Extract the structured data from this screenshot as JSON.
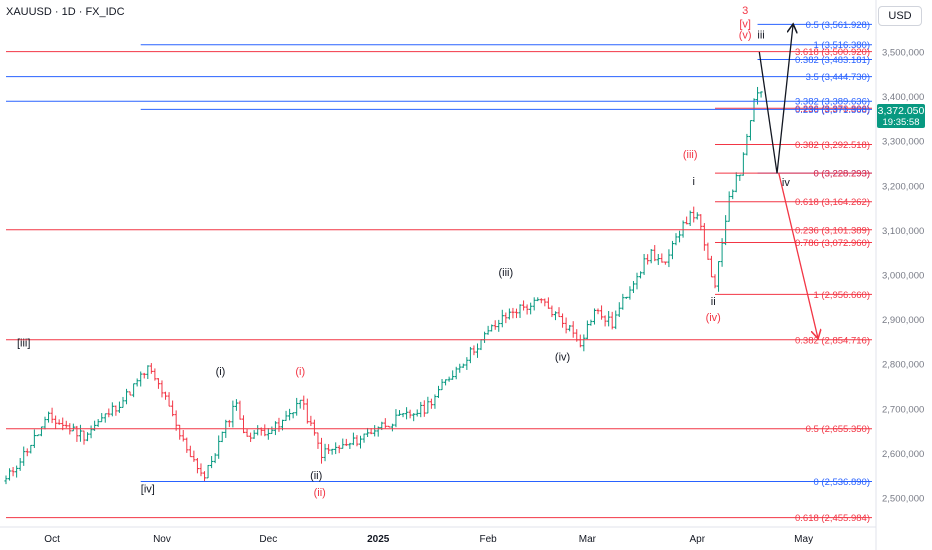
{
  "header": {
    "symbol_title": "XAUUSD · 1D · FX_IDC",
    "currency": "USD"
  },
  "last_price": {
    "value": "3,372.050",
    "countdown": "19:35:58"
  },
  "chart_data": {
    "type": "candlestick",
    "ylim": [
      2440,
      3610
    ],
    "y_ticks": [
      "3,500,000",
      "3,400,000",
      "3,300,000",
      "3,200,000",
      "3,100,000",
      "3,000,000",
      "2,900,000",
      "2,800,000",
      "2,700,000",
      "2,600,000",
      "2,500,000"
    ],
    "y_tick_values": [
      3500,
      3400,
      3300,
      3200,
      3100,
      3000,
      2900,
      2800,
      2700,
      2600,
      2500
    ],
    "x_labels": [
      {
        "label": "Oct",
        "day": 13
      },
      {
        "label": "Nov",
        "day": 44
      },
      {
        "label": "Dec",
        "day": 74
      },
      {
        "label": "2025",
        "day": 105,
        "bold": true
      },
      {
        "label": "Feb",
        "day": 136
      },
      {
        "label": "Mar",
        "day": 164
      },
      {
        "label": "Apr",
        "day": 195
      },
      {
        "label": "May",
        "day": 225
      }
    ],
    "fib_levels": [
      {
        "label": "0.5 (3,561.928)",
        "value": 3561.928,
        "color": "#2962ff",
        "from_day": 212
      },
      {
        "label": "1 (3,516.380)",
        "value": 3516.38,
        "color": "#2962ff",
        "from_day": 38
      },
      {
        "label": "3.618 (3,500.920)",
        "value": 3500.92,
        "color": "#f23645",
        "from_day": 0
      },
      {
        "label": "0.382 (3,483.181)",
        "value": 3483.181,
        "color": "#2962ff",
        "from_day": 212
      },
      {
        "label": "3.5 (3,444.730)",
        "value": 3444.73,
        "color": "#2962ff",
        "from_day": 0
      },
      {
        "label": "3.382 (3,389.636)",
        "value": 3389.636,
        "color": "#2962ff",
        "from_day": 0
      },
      {
        "label": "0.236 (3,373.806)",
        "value": 3373.806,
        "color": "#f23645",
        "from_day": 200
      },
      {
        "label": "0.236 (3,371.368)",
        "value": 3371.368,
        "color": "#2962ff",
        "from_day": 38
      },
      {
        "label": "0.382 (3,292.518)",
        "value": 3292.518,
        "color": "#f23645",
        "from_day": 200
      },
      {
        "label": "0 (3,228.293)",
        "value": 3228.293,
        "color": "#2962ff",
        "from_day": 212
      },
      {
        "label": "0 (3,228.293)",
        "value": 3228.293,
        "color": "#f23645",
        "from_day": 200
      },
      {
        "label": "0.618 (3,164.262)",
        "value": 3164.262,
        "color": "#f23645",
        "from_day": 200
      },
      {
        "label": "0.236 (3,101.389)",
        "value": 3101.389,
        "color": "#f23645",
        "from_day": 0
      },
      {
        "label": "0.786 (3,072.960)",
        "value": 3072.96,
        "color": "#f23645",
        "from_day": 200
      },
      {
        "label": "1 (2,956.660)",
        "value": 2956.66,
        "color": "#f23645",
        "from_day": 200
      },
      {
        "label": "0.382 (2,854.716)",
        "value": 2854.716,
        "color": "#f23645",
        "from_day": 0
      },
      {
        "label": "0.5 (2,655.350)",
        "value": 2655.35,
        "color": "#f23645",
        "from_day": 0
      },
      {
        "label": "0 (2,536.890)",
        "value": 2536.89,
        "color": "#2962ff",
        "from_day": 38
      },
      {
        "label": "0.618 (2,455.984)",
        "value": 2455.984,
        "color": "#f23645",
        "from_day": 0
      }
    ],
    "wave_labels": [
      {
        "text": "3",
        "day": 208.5,
        "price": 3585,
        "color": "#f23645"
      },
      {
        "text": "[v]",
        "day": 208.5,
        "price": 3555,
        "color": "#f23645"
      },
      {
        "text": "(v)",
        "day": 208.5,
        "price": 3530,
        "color": "#f23645"
      },
      {
        "text": "iii",
        "day": 213,
        "price": 3530,
        "color": "#131722"
      },
      {
        "text": "(iii)",
        "day": 193,
        "price": 3262,
        "color": "#f23645"
      },
      {
        "text": "i",
        "day": 194,
        "price": 3202,
        "color": "#131722"
      },
      {
        "text": "iv",
        "day": 220,
        "price": 3200,
        "color": "#131722"
      },
      {
        "text": "(iii)",
        "day": 141,
        "price": 2998,
        "color": "#131722"
      },
      {
        "text": "ii",
        "day": 199.5,
        "price": 2933,
        "color": "#131722"
      },
      {
        "text": "(iv)",
        "day": 199.5,
        "price": 2897,
        "color": "#f23645"
      },
      {
        "text": "[iii]",
        "day": 5,
        "price": 2840,
        "color": "#131722"
      },
      {
        "text": "(iv)",
        "day": 157,
        "price": 2808,
        "color": "#131722"
      },
      {
        "text": "(i)",
        "day": 60.5,
        "price": 2776,
        "color": "#131722"
      },
      {
        "text": "(i)",
        "day": 83,
        "price": 2776,
        "color": "#f23645"
      },
      {
        "text": "(ii)",
        "day": 87.5,
        "price": 2543,
        "color": "#131722"
      },
      {
        "text": "(ii)",
        "day": 88.5,
        "price": 2505,
        "color": "#f23645"
      },
      {
        "text": "[iv]",
        "day": 40,
        "price": 2512,
        "color": "#131722"
      }
    ],
    "projection_paths": [
      {
        "color": "#131722",
        "points": [
          [
            212.5,
            3500
          ],
          [
            217.5,
            3228
          ],
          [
            222,
            3560
          ]
        ]
      },
      {
        "color": "#f23645",
        "points": [
          [
            218,
            3228
          ],
          [
            229,
            2860
          ]
        ]
      }
    ],
    "anchors": [
      {
        "day": 0,
        "price": 2540
      },
      {
        "day": 12,
        "price": 2680
      },
      {
        "day": 22,
        "price": 2640
      },
      {
        "day": 33,
        "price": 2720
      },
      {
        "day": 40,
        "price": 2790
      },
      {
        "day": 44,
        "price": 2740
      },
      {
        "day": 49,
        "price": 2640
      },
      {
        "day": 56,
        "price": 2545
      },
      {
        "day": 65,
        "price": 2720
      },
      {
        "day": 67,
        "price": 2640
      },
      {
        "day": 77,
        "price": 2660
      },
      {
        "day": 83,
        "price": 2720
      },
      {
        "day": 89,
        "price": 2600
      },
      {
        "day": 97,
        "price": 2620
      },
      {
        "day": 105,
        "price": 2660
      },
      {
        "day": 118,
        "price": 2700
      },
      {
        "day": 126,
        "price": 2780
      },
      {
        "day": 137,
        "price": 2880
      },
      {
        "day": 143,
        "price": 2920
      },
      {
        "day": 151,
        "price": 2940
      },
      {
        "day": 159,
        "price": 2880
      },
      {
        "day": 162,
        "price": 2850
      },
      {
        "day": 166,
        "price": 2920
      },
      {
        "day": 171,
        "price": 2890
      },
      {
        "day": 177,
        "price": 2990
      },
      {
        "day": 182,
        "price": 3050
      },
      {
        "day": 186,
        "price": 3020
      },
      {
        "day": 191,
        "price": 3120
      },
      {
        "day": 195,
        "price": 3140
      },
      {
        "day": 197,
        "price": 3060
      },
      {
        "day": 200,
        "price": 2970
      },
      {
        "day": 202,
        "price": 3070
      },
      {
        "day": 204,
        "price": 3180
      },
      {
        "day": 207,
        "price": 3230
      },
      {
        "day": 209,
        "price": 3320
      },
      {
        "day": 211,
        "price": 3390
      },
      {
        "day": 212.5,
        "price": 3430
      },
      {
        "day": 214,
        "price": 3380
      }
    ]
  }
}
